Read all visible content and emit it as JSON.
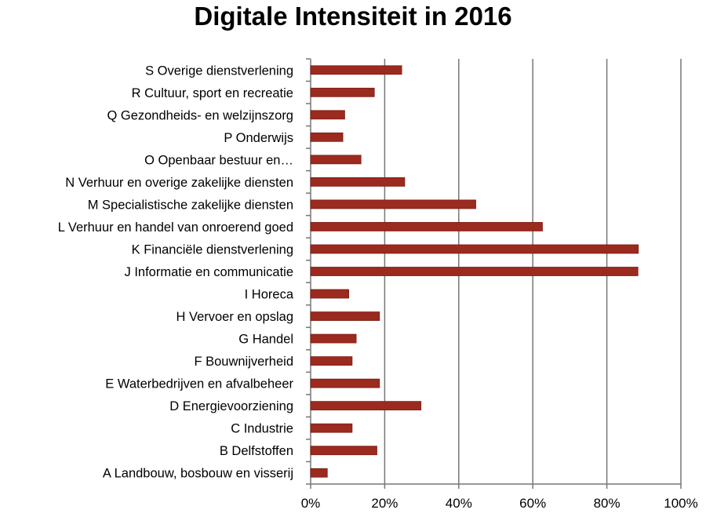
{
  "chart_data": {
    "type": "bar",
    "orientation": "horizontal",
    "title": "Digitale Intensiteit in 2016",
    "xlabel": "",
    "ylabel": "",
    "xlim": [
      0,
      100
    ],
    "x_ticks": [
      "0%",
      "20%",
      "40%",
      "60%",
      "80%",
      "100%"
    ],
    "grid": "vertical gridlines",
    "bar_color": "#9b2a1f",
    "categories": [
      "S Overige dienstverlening",
      "R Cultuur, sport en recreatie",
      "Q Gezondheids- en welzijnszorg",
      "P Onderwijs",
      "O Openbaar bestuur en…",
      "N Verhuur en overige zakelijke diensten",
      "M Specialistische zakelijke diensten",
      "L Verhuur en handel van onroerend goed",
      "K Financiële dienstverlening",
      "J Informatie en communicatie",
      "I Horeca",
      "H Vervoer en opslag",
      "G Handel",
      "F Bouwnijverheid",
      "E Waterbedrijven en afvalbeheer",
      "D Energievoorziening",
      "C Industrie",
      "B Delfstoffen",
      "A Landbouw, bosbouw en visserij"
    ],
    "values": [
      24.6,
      17.2,
      9.2,
      8.7,
      13.6,
      25.4,
      44.6,
      62.6,
      88.5,
      88.4,
      10.3,
      18.6,
      12.3,
      11.2,
      18.6,
      29.8,
      11.2,
      17.9,
      4.5
    ]
  }
}
